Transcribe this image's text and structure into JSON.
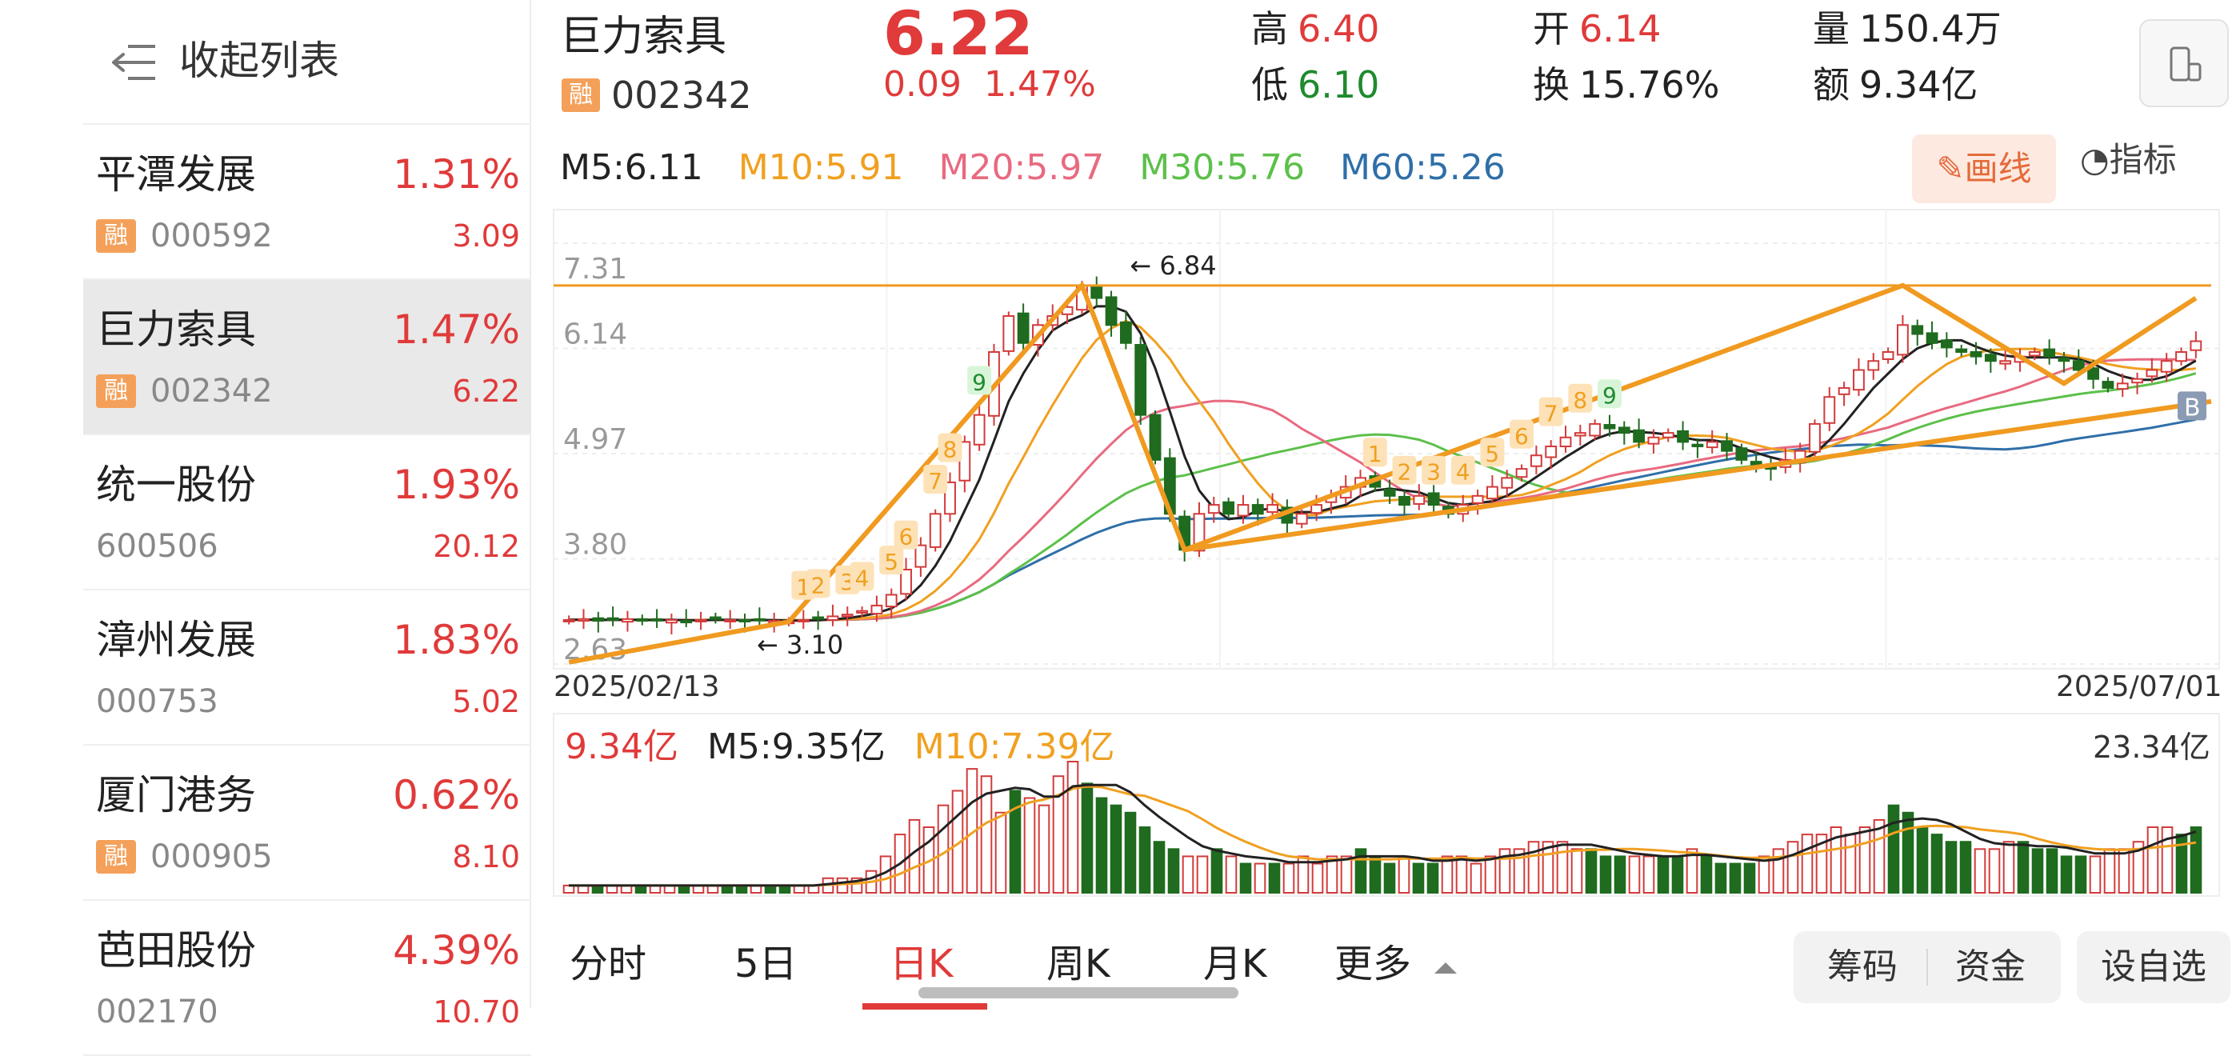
{
  "sidebar": {
    "collapse_label": "收起列表",
    "items": [
      {
        "name": "平潭发展",
        "pct": "1.31%",
        "code": "000592",
        "price": "3.09",
        "rong": "融",
        "active": false
      },
      {
        "name": "巨力索具",
        "pct": "1.47%",
        "code": "002342",
        "price": "6.22",
        "rong": "融",
        "active": true
      },
      {
        "name": "统一股份",
        "pct": "1.93%",
        "code": "600506",
        "price": "20.12",
        "rong": "",
        "active": false
      },
      {
        "name": "漳州发展",
        "pct": "1.83%",
        "code": "000753",
        "price": "5.02",
        "rong": "",
        "active": false
      },
      {
        "name": "厦门港务",
        "pct": "0.62%",
        "code": "000905",
        "price": "8.10",
        "rong": "融",
        "active": false
      },
      {
        "name": "芭田股份",
        "pct": "4.39%",
        "code": "002170",
        "price": "10.70",
        "rong": "",
        "active": false
      }
    ]
  },
  "header": {
    "name": "巨力索具",
    "rong": "融",
    "code": "002342",
    "price": "6.22",
    "change": "0.09",
    "change_pct": "1.47%",
    "high_label": "高",
    "high": "6.40",
    "low_label": "低",
    "low": "6.10",
    "open_label": "开",
    "open": "6.14",
    "turnover_label": "换",
    "turnover": "15.76%",
    "volume_label": "量",
    "volume": "150.4万",
    "amount_label": "额",
    "amount": "9.34亿"
  },
  "ma": {
    "m5": "M5:6.11",
    "m10": "M10:5.91",
    "m20": "M20:5.97",
    "m30": "M30:5.76",
    "m60": "M60:5.26",
    "colors": {
      "m5": "#222222",
      "m10": "#f0a020",
      "m20": "#e86a80",
      "m30": "#5cc04a",
      "m60": "#2f6fa8"
    }
  },
  "toolbar": {
    "draw_label": "画线",
    "indicator_label": "指标"
  },
  "chart_data": {
    "type": "candlestick",
    "y_ticks": [
      "7.31",
      "6.14",
      "4.97",
      "3.80",
      "2.63"
    ],
    "ylim": [
      2.63,
      7.31
    ],
    "x_start": "2025/02/13",
    "x_end": "2025/07/01",
    "annotations": [
      "6.84",
      "3.10"
    ],
    "signal_counts": [
      "1",
      "2",
      "3",
      "4",
      "5",
      "6",
      "7",
      "8",
      "9",
      "1",
      "2",
      "3",
      "4",
      "5",
      "6",
      "7",
      "8",
      "9"
    ],
    "marker": "B",
    "close": [
      3.12,
      3.13,
      3.11,
      3.12,
      3.13,
      3.11,
      3.12,
      3.12,
      3.11,
      3.12,
      3.13,
      3.12,
      3.11,
      3.12,
      3.11,
      3.1,
      3.12,
      3.14,
      3.16,
      3.18,
      3.22,
      3.28,
      3.4,
      3.68,
      3.95,
      4.3,
      4.65,
      5.1,
      5.4,
      6.1,
      6.5,
      6.2,
      6.4,
      6.5,
      6.6,
      6.84,
      6.7,
      6.4,
      6.2,
      5.4,
      4.9,
      4.3,
      3.9,
      4.3,
      4.4,
      4.3,
      4.4,
      4.3,
      4.4,
      4.2,
      4.3,
      4.4,
      4.5,
      4.6,
      4.7,
      4.6,
      4.5,
      4.4,
      4.5,
      4.4,
      4.3,
      4.4,
      4.5,
      4.6,
      4.7,
      4.8,
      4.95,
      5.05,
      5.15,
      5.2,
      5.3,
      5.25,
      5.2,
      5.1,
      5.15,
      5.2,
      5.1,
      5.05,
      5.1,
      5.0,
      4.9,
      4.85,
      4.8,
      4.9,
      5.0,
      5.3,
      5.6,
      5.7,
      5.9,
      6.0,
      6.1,
      6.4,
      6.3,
      6.2,
      6.15,
      6.1,
      6.05,
      6.0,
      6.0,
      6.05,
      6.1,
      6.05,
      6.0,
      5.9,
      5.8,
      5.7,
      5.75,
      5.8,
      5.9,
      6.0,
      6.1,
      6.22
    ]
  },
  "volume": {
    "current": "9.34亿",
    "m5": "M5:9.35亿",
    "m10": "M10:7.39亿",
    "max": "23.34亿",
    "bars": [
      1,
      1,
      1,
      1,
      1,
      1,
      1,
      1,
      1,
      1,
      1,
      1,
      1,
      1,
      1,
      1,
      1,
      1,
      2,
      2,
      2,
      3,
      5,
      8,
      10,
      9,
      12,
      14,
      17,
      16,
      11,
      14,
      13,
      12,
      16,
      18,
      15,
      13,
      12,
      11,
      9,
      7,
      6,
      5,
      5,
      6,
      5,
      4,
      4,
      4,
      4,
      5,
      4,
      5,
      5,
      6,
      5,
      4,
      5,
      4,
      4,
      5,
      5,
      4,
      5,
      6,
      6,
      7,
      7,
      7,
      6,
      6,
      5,
      5,
      5,
      5,
      5,
      5,
      6,
      5,
      4,
      4,
      4,
      5,
      6,
      7,
      8,
      8,
      9,
      8,
      9,
      10,
      12,
      11,
      9,
      8,
      7,
      7,
      6,
      6,
      7,
      7,
      6,
      6,
      5,
      5,
      5,
      6,
      6,
      7,
      9,
      9,
      8,
      9
    ],
    "colors": {
      "up": "#d33a3a",
      "down": "#1f6b1f"
    }
  },
  "tabs": [
    "分时",
    "5日",
    "日K",
    "周K",
    "月K",
    "更多"
  ],
  "chips": [
    "筹码",
    "资金",
    "设自选"
  ]
}
